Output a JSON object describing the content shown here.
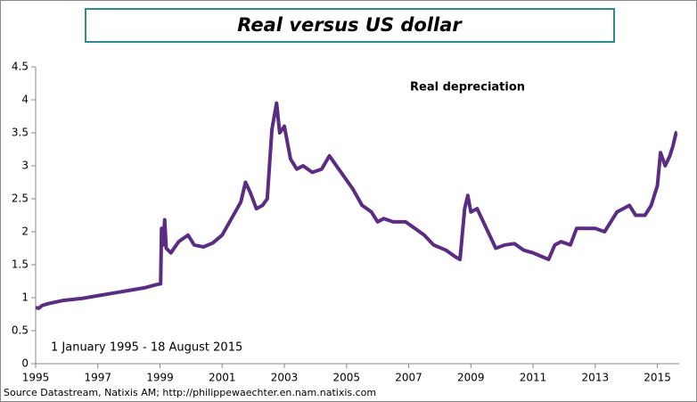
{
  "chart_data": {
    "type": "line",
    "title": "Real versus US dollar",
    "annotations": [
      "Real depreciation",
      "1 January 1995 - 18 August 2015"
    ],
    "source": "Source Datastream, Natixis AM;  http://philippewaechter.en.nam.natixis.com",
    "xlim": [
      1995,
      2015.7
    ],
    "xticks": [
      1995,
      1997,
      1999,
      2001,
      2003,
      2005,
      2007,
      2009,
      2011,
      2013,
      2015
    ],
    "ylim": [
      0,
      4.5
    ],
    "yticks": [
      0,
      0.5,
      1,
      1.5,
      2,
      2.5,
      3,
      3.5,
      4,
      4.5
    ],
    "grid": false,
    "x": [
      1995.0,
      1995.1,
      1995.2,
      1995.4,
      1995.6,
      1995.9,
      1996.5,
      1997.0,
      1997.5,
      1998.0,
      1998.5,
      1998.9,
      1999.02,
      1999.05,
      1999.1,
      1999.15,
      1999.2,
      1999.35,
      1999.6,
      1999.9,
      2000.1,
      2000.4,
      2000.7,
      2001.0,
      2001.3,
      2001.6,
      2001.75,
      2001.9,
      2002.1,
      2002.3,
      2002.45,
      2002.6,
      2002.75,
      2002.85,
      2003.0,
      2003.2,
      2003.4,
      2003.6,
      2003.9,
      2004.2,
      2004.45,
      2004.6,
      2004.9,
      2005.2,
      2005.5,
      2005.8,
      2006.0,
      2006.2,
      2006.5,
      2006.9,
      2007.2,
      2007.5,
      2007.8,
      2008.2,
      2008.5,
      2008.65,
      2008.8,
      2008.9,
      2009.0,
      2009.2,
      2009.5,
      2009.8,
      2010.1,
      2010.4,
      2010.7,
      2011.0,
      2011.3,
      2011.5,
      2011.7,
      2011.9,
      2012.2,
      2012.4,
      2012.7,
      2013.0,
      2013.3,
      2013.5,
      2013.7,
      2013.9,
      2014.1,
      2014.3,
      2014.6,
      2014.8,
      2015.0,
      2015.1,
      2015.25,
      2015.4,
      2015.5,
      2015.6,
      2015.63
    ],
    "series": [
      {
        "color": "#5b2c83",
        "values": [
          0.85,
          0.84,
          0.88,
          0.91,
          0.93,
          0.96,
          0.99,
          1.03,
          1.07,
          1.11,
          1.15,
          1.2,
          1.21,
          2.05,
          1.8,
          2.18,
          1.75,
          1.68,
          1.85,
          1.95,
          1.8,
          1.77,
          1.83,
          1.95,
          2.2,
          2.45,
          2.75,
          2.6,
          2.35,
          2.4,
          2.5,
          3.55,
          3.95,
          3.5,
          3.6,
          3.1,
          2.95,
          3.0,
          2.9,
          2.95,
          3.15,
          3.05,
          2.85,
          2.65,
          2.4,
          2.3,
          2.15,
          2.2,
          2.15,
          2.15,
          2.05,
          1.95,
          1.8,
          1.72,
          1.62,
          1.58,
          2.35,
          2.55,
          2.3,
          2.35,
          2.05,
          1.75,
          1.8,
          1.82,
          1.72,
          1.68,
          1.62,
          1.58,
          1.8,
          1.85,
          1.8,
          2.05,
          2.05,
          2.05,
          2.0,
          2.15,
          2.3,
          2.35,
          2.4,
          2.25,
          2.25,
          2.4,
          2.7,
          3.2,
          3.0,
          3.15,
          3.3,
          3.5,
          3.5
        ]
      }
    ]
  }
}
